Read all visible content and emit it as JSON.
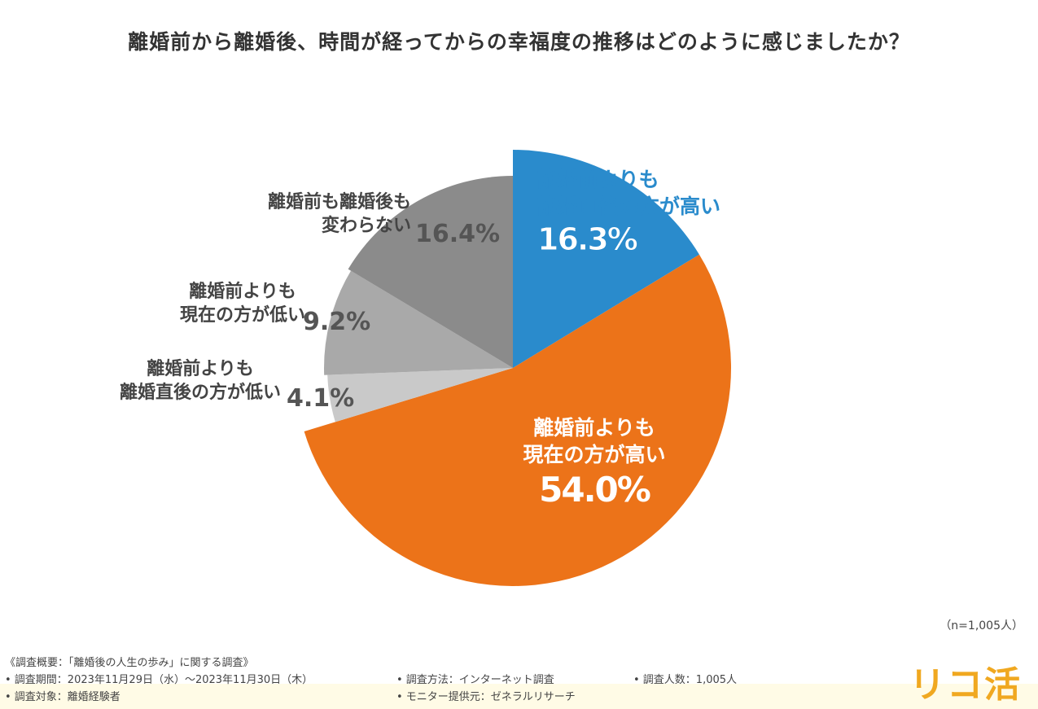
{
  "chart_data": {
    "type": "pie",
    "title": "離婚前から離婚後、時間が経ってからの幸福度の推移はどのように感じましたか？",
    "slices": [
      {
        "label_lines": [
          "離婚前よりも",
          "離婚直後の方が高い"
        ],
        "value": 16.3,
        "value_label": "16.3%",
        "color": "#2a8bcc"
      },
      {
        "label_lines": [
          "離婚前よりも",
          "現在の方が高い"
        ],
        "value": 54.0,
        "value_label": "54.0%",
        "color": "#ec7319"
      },
      {
        "label_lines": [
          "離婚前よりも",
          "離婚直後の方が低い"
        ],
        "value": 4.1,
        "value_label": "4.1%",
        "color": "#c9c9c9"
      },
      {
        "label_lines": [
          "離婚前よりも",
          "現在の方が低い"
        ],
        "value": 9.2,
        "value_label": "9.2%",
        "color": "#a9a9a9"
      },
      {
        "label_lines": [
          "離婚前も離婚後も",
          "変わらない"
        ],
        "value": 16.4,
        "value_label": "16.4%",
        "color": "#8b8b8b"
      }
    ],
    "sample": "（n=1,005人）"
  },
  "footer": {
    "summary": "《調査概要：「離婚後の人生の歩み」に関する調査》",
    "period": "• 調査期間：2023年11月29日（水）～2023年11月30日（木）",
    "target": "• 調査対象：離婚経験者",
    "method": "• 調査方法：インターネット調査",
    "provider": "• モニター提供元：ゼネラルリサーチ",
    "count": "• 調査人数：1,005人"
  },
  "logo": "リコ活"
}
